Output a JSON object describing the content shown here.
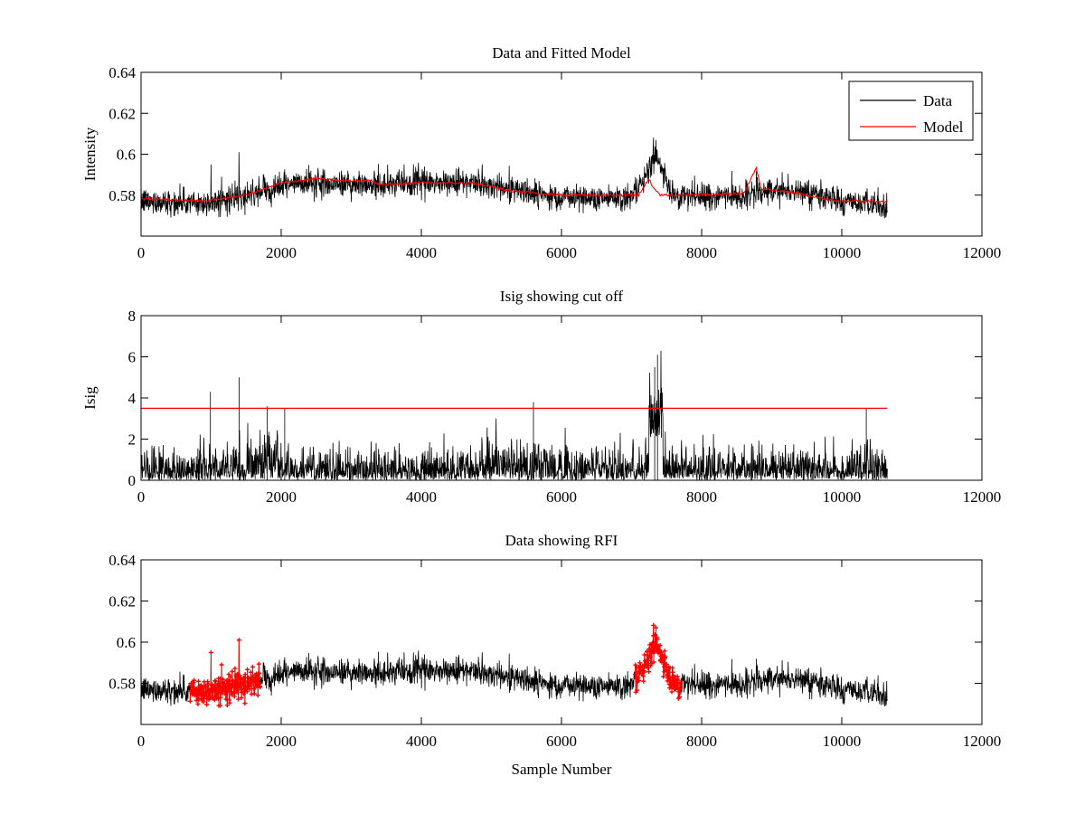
{
  "chart_data": [
    {
      "type": "line",
      "title": "Data and Fitted Model",
      "xlabel": "",
      "ylabel": "Intensity",
      "xlim": [
        0,
        12000
      ],
      "ylim": [
        0.56,
        0.64
      ],
      "xticks": [
        0,
        2000,
        4000,
        6000,
        8000,
        10000,
        12000
      ],
      "yticks": [
        0.58,
        0.6,
        0.62,
        0.64
      ],
      "ytick_labels": [
        "0.58",
        "0.6",
        "0.62",
        "0.64"
      ],
      "legend": {
        "position": "top-right",
        "entries": [
          "Data",
          "Model"
        ]
      },
      "series": [
        {
          "name": "Data",
          "color": "#000000",
          "kind": "noisy",
          "x_range": [
            0,
            10650
          ],
          "baseline_x": [
            0,
            900,
            1500,
            2000,
            2500,
            3300,
            4000,
            4700,
            5300,
            6000,
            7000,
            7150,
            7350,
            7550,
            8000,
            8700,
            9000,
            9500,
            10000,
            10650
          ],
          "baseline_y": [
            0.577,
            0.576,
            0.579,
            0.585,
            0.586,
            0.585,
            0.586,
            0.586,
            0.583,
            0.579,
            0.579,
            0.585,
            0.6,
            0.581,
            0.579,
            0.58,
            0.583,
            0.582,
            0.577,
            0.574
          ],
          "noise": 0.0032,
          "spikes": [
            [
              1000,
              0.595
            ],
            [
              1400,
              0.601
            ],
            [
              1150,
              0.589
            ],
            [
              7350,
              0.607
            ],
            [
              8780,
              0.592
            ],
            [
              3330,
              0.592
            ]
          ]
        },
        {
          "name": "Model",
          "color": "#ff0000",
          "kind": "smooth",
          "x": [
            0,
            900,
            1500,
            2000,
            2500,
            3000,
            3330,
            3400,
            4000,
            4700,
            5300,
            6000,
            6800,
            7100,
            7250,
            7300,
            7400,
            7600,
            8000,
            8600,
            8780,
            8850,
            9200,
            9800,
            10000,
            10650
          ],
          "y": [
            0.578,
            0.577,
            0.58,
            0.586,
            0.588,
            0.587,
            0.587,
            0.585,
            0.586,
            0.586,
            0.582,
            0.58,
            0.58,
            0.58,
            0.588,
            0.584,
            0.58,
            0.58,
            0.58,
            0.581,
            0.593,
            0.583,
            0.582,
            0.578,
            0.577,
            0.577
          ]
        }
      ]
    },
    {
      "type": "line",
      "title": "Isig showing cut off",
      "xlabel": "",
      "ylabel": "Isig",
      "xlim": [
        0,
        12000
      ],
      "ylim": [
        0,
        8
      ],
      "xticks": [
        0,
        2000,
        4000,
        6000,
        8000,
        10000,
        12000
      ],
      "yticks": [
        0,
        2,
        4,
        6,
        8
      ],
      "ytick_labels": [
        "0",
        "2",
        "4",
        "6",
        "8"
      ],
      "series": [
        {
          "name": "Isig",
          "color": "#000000",
          "kind": "abs-noise",
          "x_range": [
            0,
            10650
          ],
          "scale": 0.75,
          "spikes": [
            [
              990,
              4.3
            ],
            [
              1400,
              5.0
            ],
            [
              1800,
              3.6
            ],
            [
              2050,
              3.5
            ],
            [
              5600,
              3.8
            ],
            [
              7330,
              5.5
            ],
            [
              7370,
              6.1
            ],
            [
              10350,
              3.5
            ]
          ]
        },
        {
          "name": "Cut off",
          "color": "#ff0000",
          "kind": "hline",
          "x": [
            0,
            10650
          ],
          "y": [
            3.5,
            3.5
          ]
        }
      ]
    },
    {
      "type": "scatter",
      "title": "Data showing RFI",
      "xlabel": "Sample Number",
      "ylabel": "",
      "xlim": [
        0,
        12000
      ],
      "ylim": [
        0.56,
        0.64
      ],
      "xticks": [
        0,
        2000,
        4000,
        6000,
        8000,
        10000,
        12000
      ],
      "yticks": [
        0.58,
        0.6,
        0.62,
        0.64
      ],
      "ytick_labels": [
        "0.58",
        "0.6",
        "0.62",
        "0.64"
      ],
      "series": [
        {
          "name": "Data",
          "color": "#000000",
          "kind": "noisy-same-as-top"
        },
        {
          "name": "RFI",
          "color": "#ff0000",
          "kind": "markers",
          "segments": [
            [
              700,
              1700
            ],
            [
              7050,
              7700
            ]
          ],
          "peaks": [
            [
              1000,
              0.595
            ],
            [
              1400,
              0.601
            ],
            [
              1200,
              0.591
            ],
            [
              7350,
              0.607
            ]
          ]
        }
      ]
    }
  ]
}
